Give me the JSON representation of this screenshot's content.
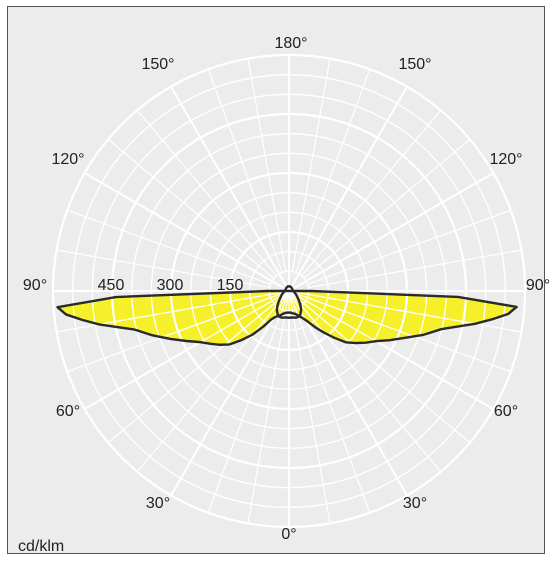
{
  "chart_data": {
    "type": "polar",
    "unit_label": "cd/klm",
    "angle_labels": {
      "bottom": "0°",
      "lower_left": "30°",
      "lower_right": "30°",
      "mid_left": "60°",
      "mid_right": "60°",
      "horizontal_left": "90°",
      "horizontal_right": "90°",
      "upper_left": "120°",
      "upper_right": "120°",
      "top_left": "150°",
      "top_right": "150°",
      "top": "180°"
    },
    "radial_ticks": [
      "150",
      "300",
      "450"
    ],
    "radial_max": 600,
    "grid": true,
    "colors": {
      "fill": "#f6f02a",
      "stroke": "#2a2a2a",
      "grid": "#ffffff",
      "background": "#ececec"
    },
    "series": [
      {
        "style": "filled",
        "points": [
          [
            -90,
            55
          ],
          [
            -88,
            440
          ],
          [
            -86,
            590
          ],
          [
            -84,
            570
          ],
          [
            -82,
            530
          ],
          [
            -80,
            490
          ],
          [
            -76,
            405
          ],
          [
            -72,
            365
          ],
          [
            -68,
            325
          ],
          [
            -64,
            290
          ],
          [
            -60,
            260
          ],
          [
            -56,
            240
          ],
          [
            -52,
            222
          ],
          [
            -48,
            203
          ],
          [
            -44,
            173
          ],
          [
            -40,
            145
          ],
          [
            -36,
            113
          ],
          [
            -32,
            85
          ],
          [
            -28,
            75
          ],
          [
            -24,
            70
          ],
          [
            -20,
            66
          ],
          [
            -15,
            60
          ],
          [
            -10,
            57
          ],
          [
            -5,
            55
          ],
          [
            0,
            55
          ],
          [
            5,
            55
          ],
          [
            10,
            58
          ],
          [
            15,
            60
          ],
          [
            20,
            66
          ],
          [
            24,
            72
          ],
          [
            28,
            80
          ],
          [
            32,
            93
          ],
          [
            36,
            115
          ],
          [
            40,
            138
          ],
          [
            44,
            165
          ],
          [
            48,
            195
          ],
          [
            52,
            215
          ],
          [
            56,
            235
          ],
          [
            60,
            255
          ],
          [
            64,
            285
          ],
          [
            68,
            318
          ],
          [
            72,
            360
          ],
          [
            76,
            400
          ],
          [
            80,
            480
          ],
          [
            82,
            520
          ],
          [
            84,
            560
          ],
          [
            86,
            580
          ],
          [
            88,
            430
          ],
          [
            90,
            55
          ]
        ]
      },
      {
        "style": "outline",
        "points": [
          [
            0,
            68
          ],
          [
            8,
            68
          ],
          [
            14,
            70
          ],
          [
            20,
            70
          ],
          [
            26,
            66
          ],
          [
            32,
            58
          ],
          [
            38,
            48
          ],
          [
            44,
            38
          ],
          [
            52,
            28
          ],
          [
            64,
            20
          ],
          [
            80,
            13
          ],
          [
            100,
            10
          ],
          [
            130,
            10
          ],
          [
            150,
            11
          ],
          [
            165,
            12
          ],
          [
            180,
            12
          ],
          [
            195,
            12
          ],
          [
            210,
            11
          ],
          [
            230,
            10
          ],
          [
            260,
            10
          ],
          [
            280,
            13
          ],
          [
            296,
            20
          ],
          [
            308,
            28
          ],
          [
            316,
            38
          ],
          [
            322,
            48
          ],
          [
            328,
            58
          ],
          [
            334,
            66
          ],
          [
            340,
            70
          ],
          [
            346,
            70
          ],
          [
            352,
            68
          ],
          [
            360,
            68
          ]
        ]
      }
    ]
  }
}
